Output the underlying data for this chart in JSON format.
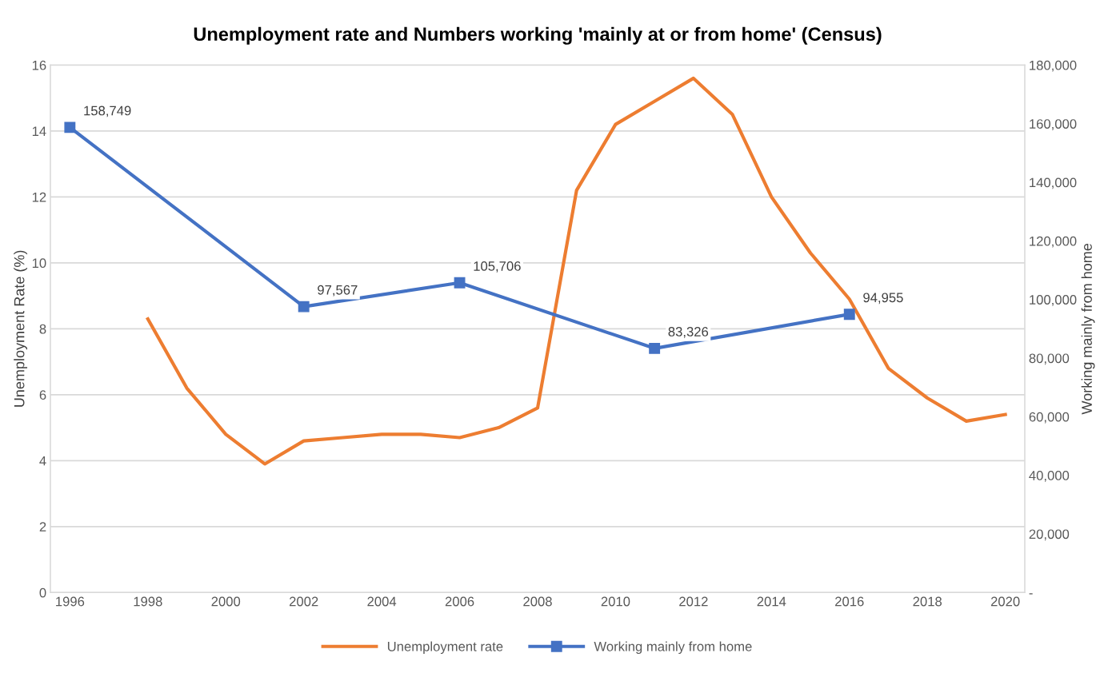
{
  "chart_data": {
    "type": "line",
    "title": "Unemployment rate and Numbers working 'mainly at or from home' (Census)",
    "ylabel": "Unemployment Rate (%)",
    "y2label": "Working mainly from home",
    "xlim": [
      1995.5,
      2020.5
    ],
    "xticks": [
      1996,
      1998,
      2000,
      2002,
      2004,
      2006,
      2008,
      2010,
      2012,
      2014,
      2016,
      2018,
      2020
    ],
    "ylim": [
      0,
      16
    ],
    "yticks": [
      0,
      2,
      4,
      6,
      8,
      10,
      12,
      14,
      16
    ],
    "y2lim": [
      0,
      180000
    ],
    "y2ticks": [
      {
        "value": 0,
        "label": "-"
      },
      {
        "value": 20000,
        "label": "20,000"
      },
      {
        "value": 40000,
        "label": "40,000"
      },
      {
        "value": 60000,
        "label": "60,000"
      },
      {
        "value": 80000,
        "label": "80,000"
      },
      {
        "value": 100000,
        "label": "100,000"
      },
      {
        "value": 120000,
        "label": "120,000"
      },
      {
        "value": 140000,
        "label": "140,000"
      },
      {
        "value": 160000,
        "label": "160,000"
      },
      {
        "value": 180000,
        "label": "180,000"
      }
    ],
    "grid": "y",
    "legend": "bottom",
    "series": [
      {
        "name": "Unemployment rate",
        "color": "#ed7d31",
        "marker": "none",
        "x": [
          1998,
          1999,
          2000,
          2001,
          2002,
          2003,
          2004,
          2005,
          2006,
          2007,
          2008,
          2009,
          2010,
          2011,
          2012,
          2013,
          2014,
          2015,
          2016,
          2017,
          2018,
          2019,
          2020
        ],
        "values": [
          8.3,
          6.2,
          4.8,
          3.9,
          4.6,
          4.7,
          4.8,
          4.8,
          4.7,
          5.0,
          5.6,
          12.2,
          14.2,
          14.9,
          15.6,
          14.5,
          12.0,
          10.3,
          8.9,
          6.8,
          5.9,
          5.2,
          5.4
        ]
      },
      {
        "name": "Working mainly from home",
        "color": "#4472c4",
        "marker": "square",
        "axis": "y2",
        "x": [
          1996,
          2002,
          2006,
          2011,
          2016
        ],
        "values": [
          158749,
          97567,
          105706,
          83326,
          94955
        ],
        "value_labels": [
          "158,749",
          "97,567",
          "105,706",
          "83,326",
          "94,955"
        ]
      }
    ]
  }
}
